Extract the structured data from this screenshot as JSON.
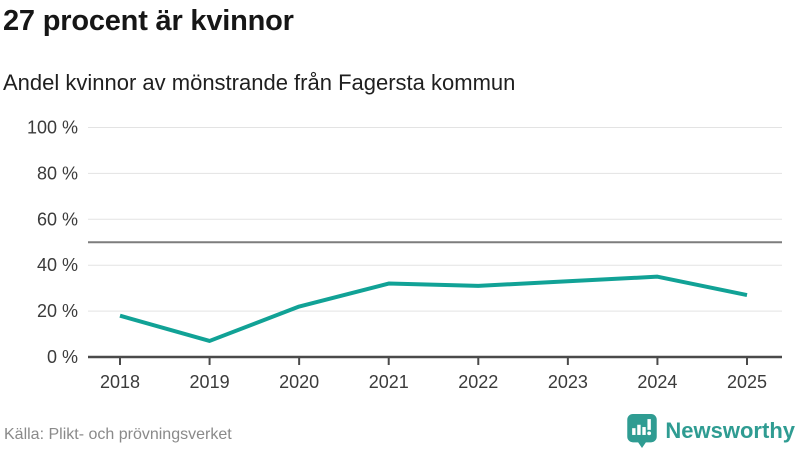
{
  "header": {
    "title": "27 procent är kvinnor",
    "subtitle": "Andel kvinnor av mönstrande från Fagersta kommun"
  },
  "chart_data": {
    "type": "line",
    "x": [
      2018,
      2019,
      2020,
      2021,
      2022,
      2023,
      2024,
      2025
    ],
    "values": [
      18,
      7,
      22,
      32,
      31,
      33,
      35,
      27
    ],
    "title": "27 procent är kvinnor",
    "subtitle": "Andel kvinnor av mönstrande från Fagersta kommun",
    "xlabel": "",
    "ylabel": "",
    "ylim": [
      0,
      100
    ],
    "yticks": [
      0,
      20,
      40,
      60,
      80,
      100
    ],
    "ytick_suffix": " %",
    "reference_line": 50,
    "grid": true,
    "legend": "none",
    "line_color": "#11A296"
  },
  "theme": {
    "title_color": "#161616",
    "tick_label_color": "#3B3B3B",
    "grid_color": "#E3E3E3",
    "reference_color": "#7D7D7D",
    "axis_color": "#4A4A4A",
    "source_color": "#8A8A8A",
    "brand_color": "#2F9C92"
  },
  "footer": {
    "source": "Källa: Plikt- och prövningsverket",
    "brand": "Newsworthy",
    "logo_icon": "newsworthy-speech-bubble-bar-chart-icon"
  }
}
